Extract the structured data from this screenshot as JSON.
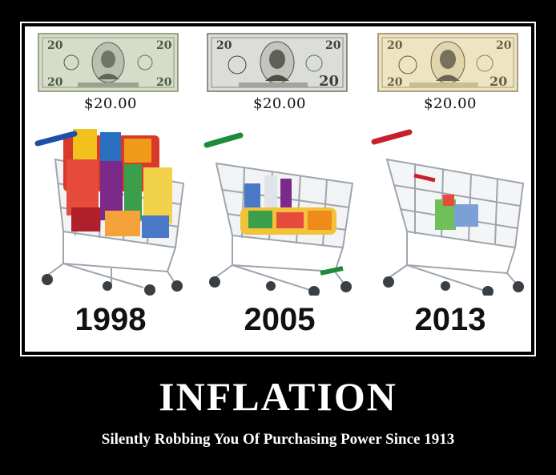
{
  "panels": [
    {
      "price": "$20.00",
      "year": "1998",
      "bill_icon": "twenty-dollar-bill-1998",
      "cart_fill": "full",
      "handle_color": "#1e4fa8"
    },
    {
      "price": "$20.00",
      "year": "2005",
      "bill_icon": "twenty-dollar-bill-2005",
      "cart_fill": "half",
      "handle_color": "#1f8a3a"
    },
    {
      "price": "$20.00",
      "year": "2013",
      "bill_icon": "twenty-dollar-bill-2013",
      "cart_fill": "few",
      "handle_color": "#c8202a"
    }
  ],
  "headline": "INFLATION",
  "tagline": "Silently Robbing You Of Purchasing Power Since 1913"
}
